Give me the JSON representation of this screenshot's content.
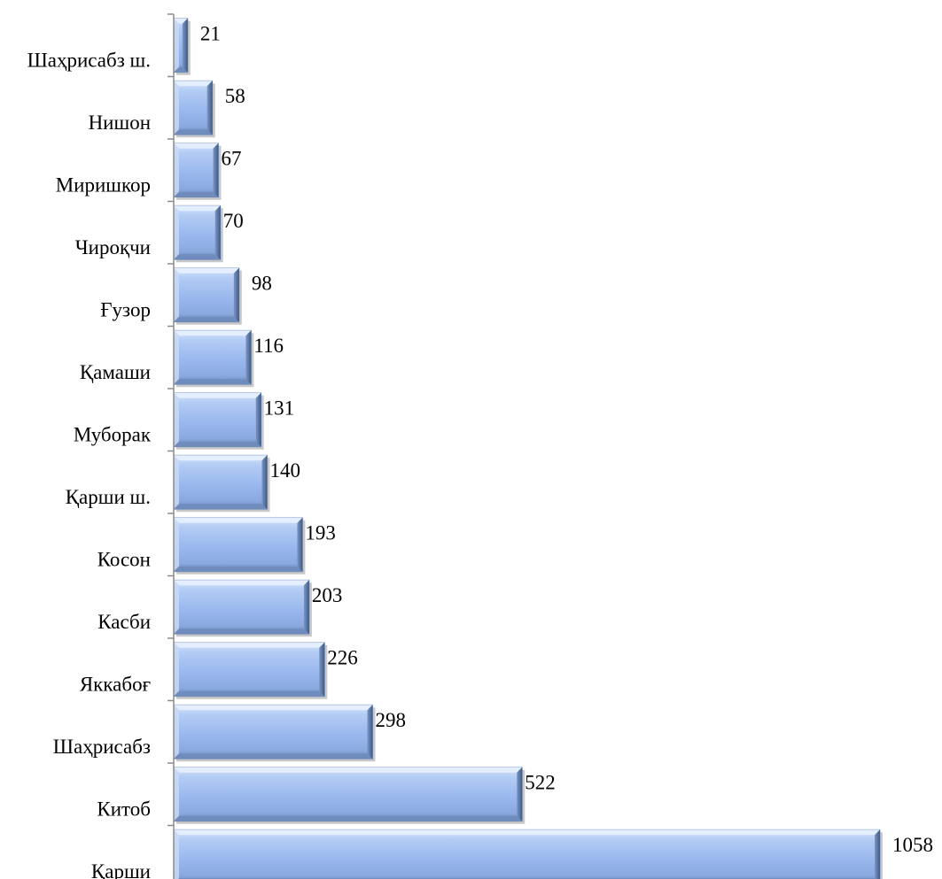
{
  "chart_data": {
    "type": "bar",
    "orientation": "horizontal",
    "categories": [
      "Шаҳрисабз ш.",
      "Нишон",
      "Миришкор",
      "Чироқчи",
      "Ғузор",
      "Қамаши",
      "Муборак",
      "Қарши ш.",
      "Косон",
      "Касби",
      "Яккабоғ",
      "Шаҳрисабз",
      "Китоб",
      "Қарши"
    ],
    "values": [
      21,
      58,
      67,
      70,
      98,
      116,
      131,
      140,
      193,
      203,
      226,
      298,
      522,
      1058
    ],
    "xlim": [
      0,
      1058
    ],
    "grid": false,
    "legend": "none",
    "data_labels": true,
    "colors": {
      "bar_fill": "#9dbbf0",
      "bar_light": "#d6e4fb",
      "bar_shadow": "#4f6f9e",
      "axis": "#8c8c8c",
      "text": "#000000"
    }
  }
}
